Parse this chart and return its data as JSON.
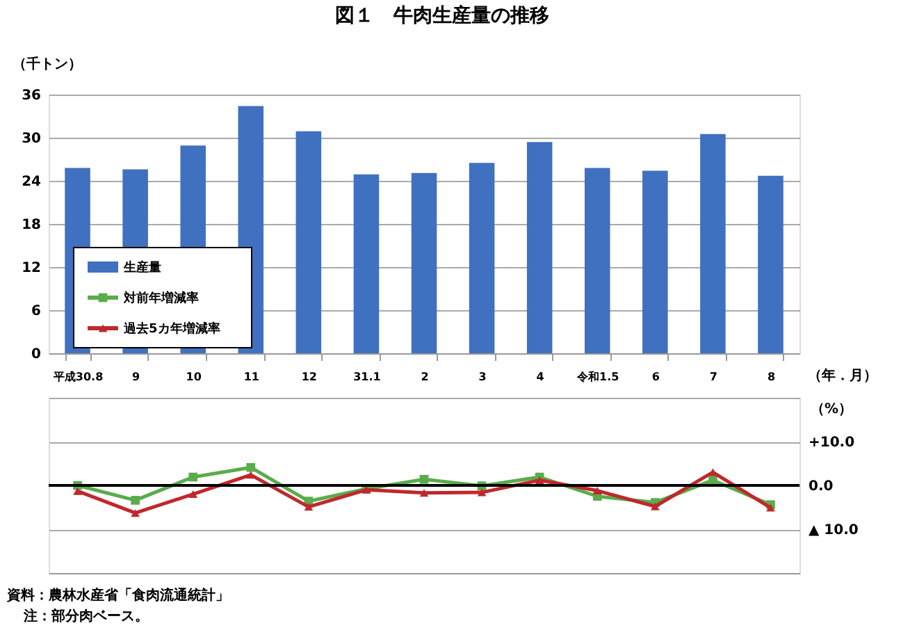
{
  "chart_data": [
    {
      "type": "bar",
      "title": "図１　牛肉生産量の推移",
      "ylabel": "（千トン）",
      "xlabel": "（年．月）",
      "categories": [
        "平成30.8",
        "9",
        "10",
        "11",
        "12",
        "31.1",
        "2",
        "3",
        "4",
        "令和1.5",
        "6",
        "7",
        "8"
      ],
      "series": [
        {
          "name": "生産量",
          "type": "bar",
          "color": "#4070c0",
          "values": [
            25.8,
            25.6,
            28.9,
            34.4,
            30.9,
            24.9,
            25.1,
            26.5,
            29.4,
            25.8,
            25.4,
            30.5,
            24.7
          ]
        }
      ],
      "ylim": [
        0,
        36
      ],
      "yticks": [
        0,
        6,
        12,
        18,
        24,
        30,
        36
      ],
      "grid": "y",
      "legend": "bottom left"
    },
    {
      "type": "line",
      "ylabel": "（%）",
      "categories": [
        null,
        null,
        null,
        null,
        null,
        null,
        null,
        null,
        null,
        null,
        null,
        null,
        null
      ],
      "series": [
        {
          "name": "対前年増減率",
          "marker": "square",
          "color": "#5aac4c",
          "values": [
            0.0,
            -3.4,
            1.9,
            4.1,
            -3.6,
            -0.8,
            1.4,
            -0.1,
            1.9,
            -2.5,
            -3.9,
            1.2,
            -4.4
          ]
        },
        {
          "name": "過去5カ年増減率",
          "marker": "triangle",
          "color": "#c0282d",
          "values": [
            -1.3,
            -6.3,
            -2.0,
            2.4,
            -4.9,
            -1.0,
            -1.7,
            -1.6,
            1.2,
            -1.2,
            -4.8,
            3.0,
            -5.1
          ]
        }
      ],
      "ylim": [
        -20,
        20
      ],
      "yticks": [
        {
          "value": -20,
          "label": null
        },
        {
          "value": -10,
          "label": "▲ 10.0"
        },
        {
          "value": 0,
          "label": "0.0"
        },
        {
          "value": 10,
          "label": "+10.0"
        },
        {
          "value": 20,
          "label": null
        }
      ],
      "ref_lines": [
        {
          "axis": "y",
          "value": 0,
          "label": null,
          "color": "#000000"
        }
      ],
      "grid": "y",
      "tick_labels": "y",
      "legend": "top left",
      "annotations": [
        "資料：農林水産省「食肉流通統計」",
        "注：部分肉ベース。"
      ]
    }
  ]
}
